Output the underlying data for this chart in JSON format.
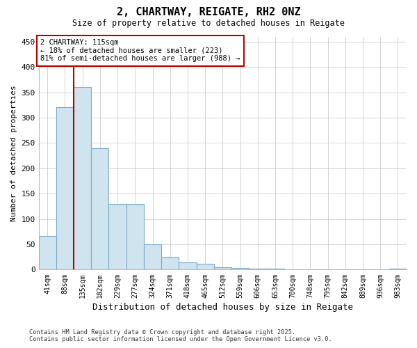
{
  "title_line1": "2, CHARTWAY, REIGATE, RH2 0NZ",
  "title_line2": "Size of property relative to detached houses in Reigate",
  "xlabel": "Distribution of detached houses by size in Reigate",
  "ylabel": "Number of detached properties",
  "footer_line1": "Contains HM Land Registry data © Crown copyright and database right 2025.",
  "footer_line2": "Contains public sector information licensed under the Open Government Licence v3.0.",
  "bin_labels": [
    "41sqm",
    "88sqm",
    "135sqm",
    "182sqm",
    "229sqm",
    "277sqm",
    "324sqm",
    "371sqm",
    "418sqm",
    "465sqm",
    "512sqm",
    "559sqm",
    "606sqm",
    "653sqm",
    "700sqm",
    "748sqm",
    "795sqm",
    "842sqm",
    "889sqm",
    "936sqm",
    "983sqm"
  ],
  "bar_values": [
    67,
    320,
    360,
    240,
    130,
    130,
    50,
    25,
    15,
    12,
    5,
    3,
    2,
    2,
    1,
    1,
    1,
    1,
    1,
    1,
    2
  ],
  "bar_color": "#d0e4f0",
  "bar_edge_color": "#7aaac8",
  "vline_color": "#bb0000",
  "vline_x_idx": 1.5,
  "annotation_text_line1": "2 CHARTWAY: 115sqm",
  "annotation_text_line2": "← 18% of detached houses are smaller (223)",
  "annotation_text_line3": "81% of semi-detached houses are larger (988) →",
  "annotation_box_color": "#ffffff",
  "annotation_box_edge": "#bb0000",
  "ylim": [
    0,
    460
  ],
  "yticks": [
    0,
    50,
    100,
    150,
    200,
    250,
    300,
    350,
    400,
    450
  ],
  "grid_color": "#cccccc",
  "background_color": "#ffffff",
  "plot_bg_color": "#ffffff"
}
